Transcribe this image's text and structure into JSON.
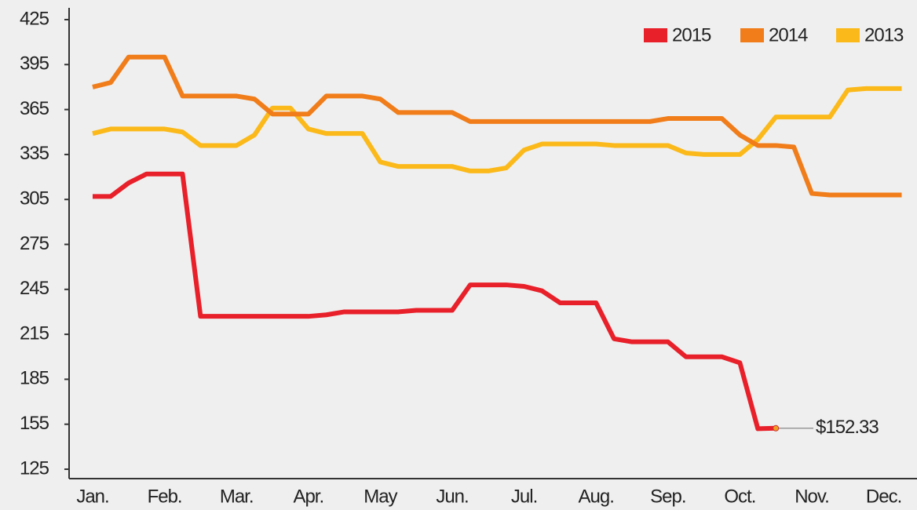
{
  "chart_data": {
    "type": "line",
    "categories": [
      "Jan.",
      null,
      null,
      null,
      "Feb.",
      null,
      null,
      null,
      "Mar.",
      null,
      null,
      null,
      "Apr.",
      null,
      null,
      null,
      "May",
      null,
      null,
      null,
      "Jun.",
      null,
      null,
      null,
      "Jul.",
      null,
      null,
      null,
      "Aug.",
      null,
      null,
      null,
      "Sep.",
      null,
      null,
      null,
      "Oct.",
      null,
      null,
      null,
      "Nov.",
      null,
      null,
      null,
      "Dec.",
      null
    ],
    "series": [
      {
        "name": "2015",
        "color": "#e8202a",
        "values": [
          307,
          307,
          316,
          322,
          322,
          322,
          227,
          227,
          227,
          227,
          227,
          227,
          227,
          228,
          230,
          230,
          230,
          230,
          231,
          231,
          231,
          248,
          248,
          248,
          247,
          244,
          236,
          236,
          236,
          212,
          210,
          210,
          210,
          200,
          200,
          200,
          196,
          152,
          152.33,
          null,
          null,
          null,
          null,
          null,
          null,
          null
        ],
        "value_labels": [
          null,
          null,
          null,
          null,
          null,
          null,
          null,
          null,
          null,
          null,
          null,
          null,
          null,
          null,
          null,
          null,
          null,
          null,
          null,
          null,
          null,
          null,
          null,
          null,
          null,
          null,
          null,
          null,
          null,
          null,
          null,
          null,
          null,
          null,
          null,
          null,
          null,
          null,
          "$152.33",
          null,
          null,
          null,
          null,
          null,
          null,
          null
        ]
      },
      {
        "name": "2014",
        "color": "#f07d1a",
        "values": [
          380,
          383,
          400,
          400,
          400,
          374,
          374,
          374,
          374,
          372,
          362,
          362,
          362,
          374,
          374,
          374,
          372,
          363,
          363,
          363,
          363,
          357,
          357,
          357,
          357,
          357,
          357,
          357,
          357,
          357,
          357,
          357,
          359,
          359,
          359,
          359,
          348,
          341,
          341,
          340,
          309,
          308,
          308,
          308,
          308,
          308
        ]
      },
      {
        "name": "2013",
        "color": "#fbb91a",
        "values": [
          349,
          352,
          352,
          352,
          352,
          350,
          341,
          341,
          341,
          348,
          366,
          366,
          352,
          349,
          349,
          349,
          330,
          327,
          327,
          327,
          327,
          324,
          324,
          326,
          338,
          342,
          342,
          342,
          342,
          341,
          341,
          341,
          341,
          336,
          335,
          335,
          335,
          345,
          360,
          360,
          360,
          360,
          378,
          379,
          379,
          379
        ]
      }
    ],
    "ylim": [
      125,
      425
    ],
    "yticks": [
      125,
      155,
      185,
      215,
      245,
      275,
      305,
      335,
      365,
      395,
      425
    ],
    "legend": "top-right"
  }
}
